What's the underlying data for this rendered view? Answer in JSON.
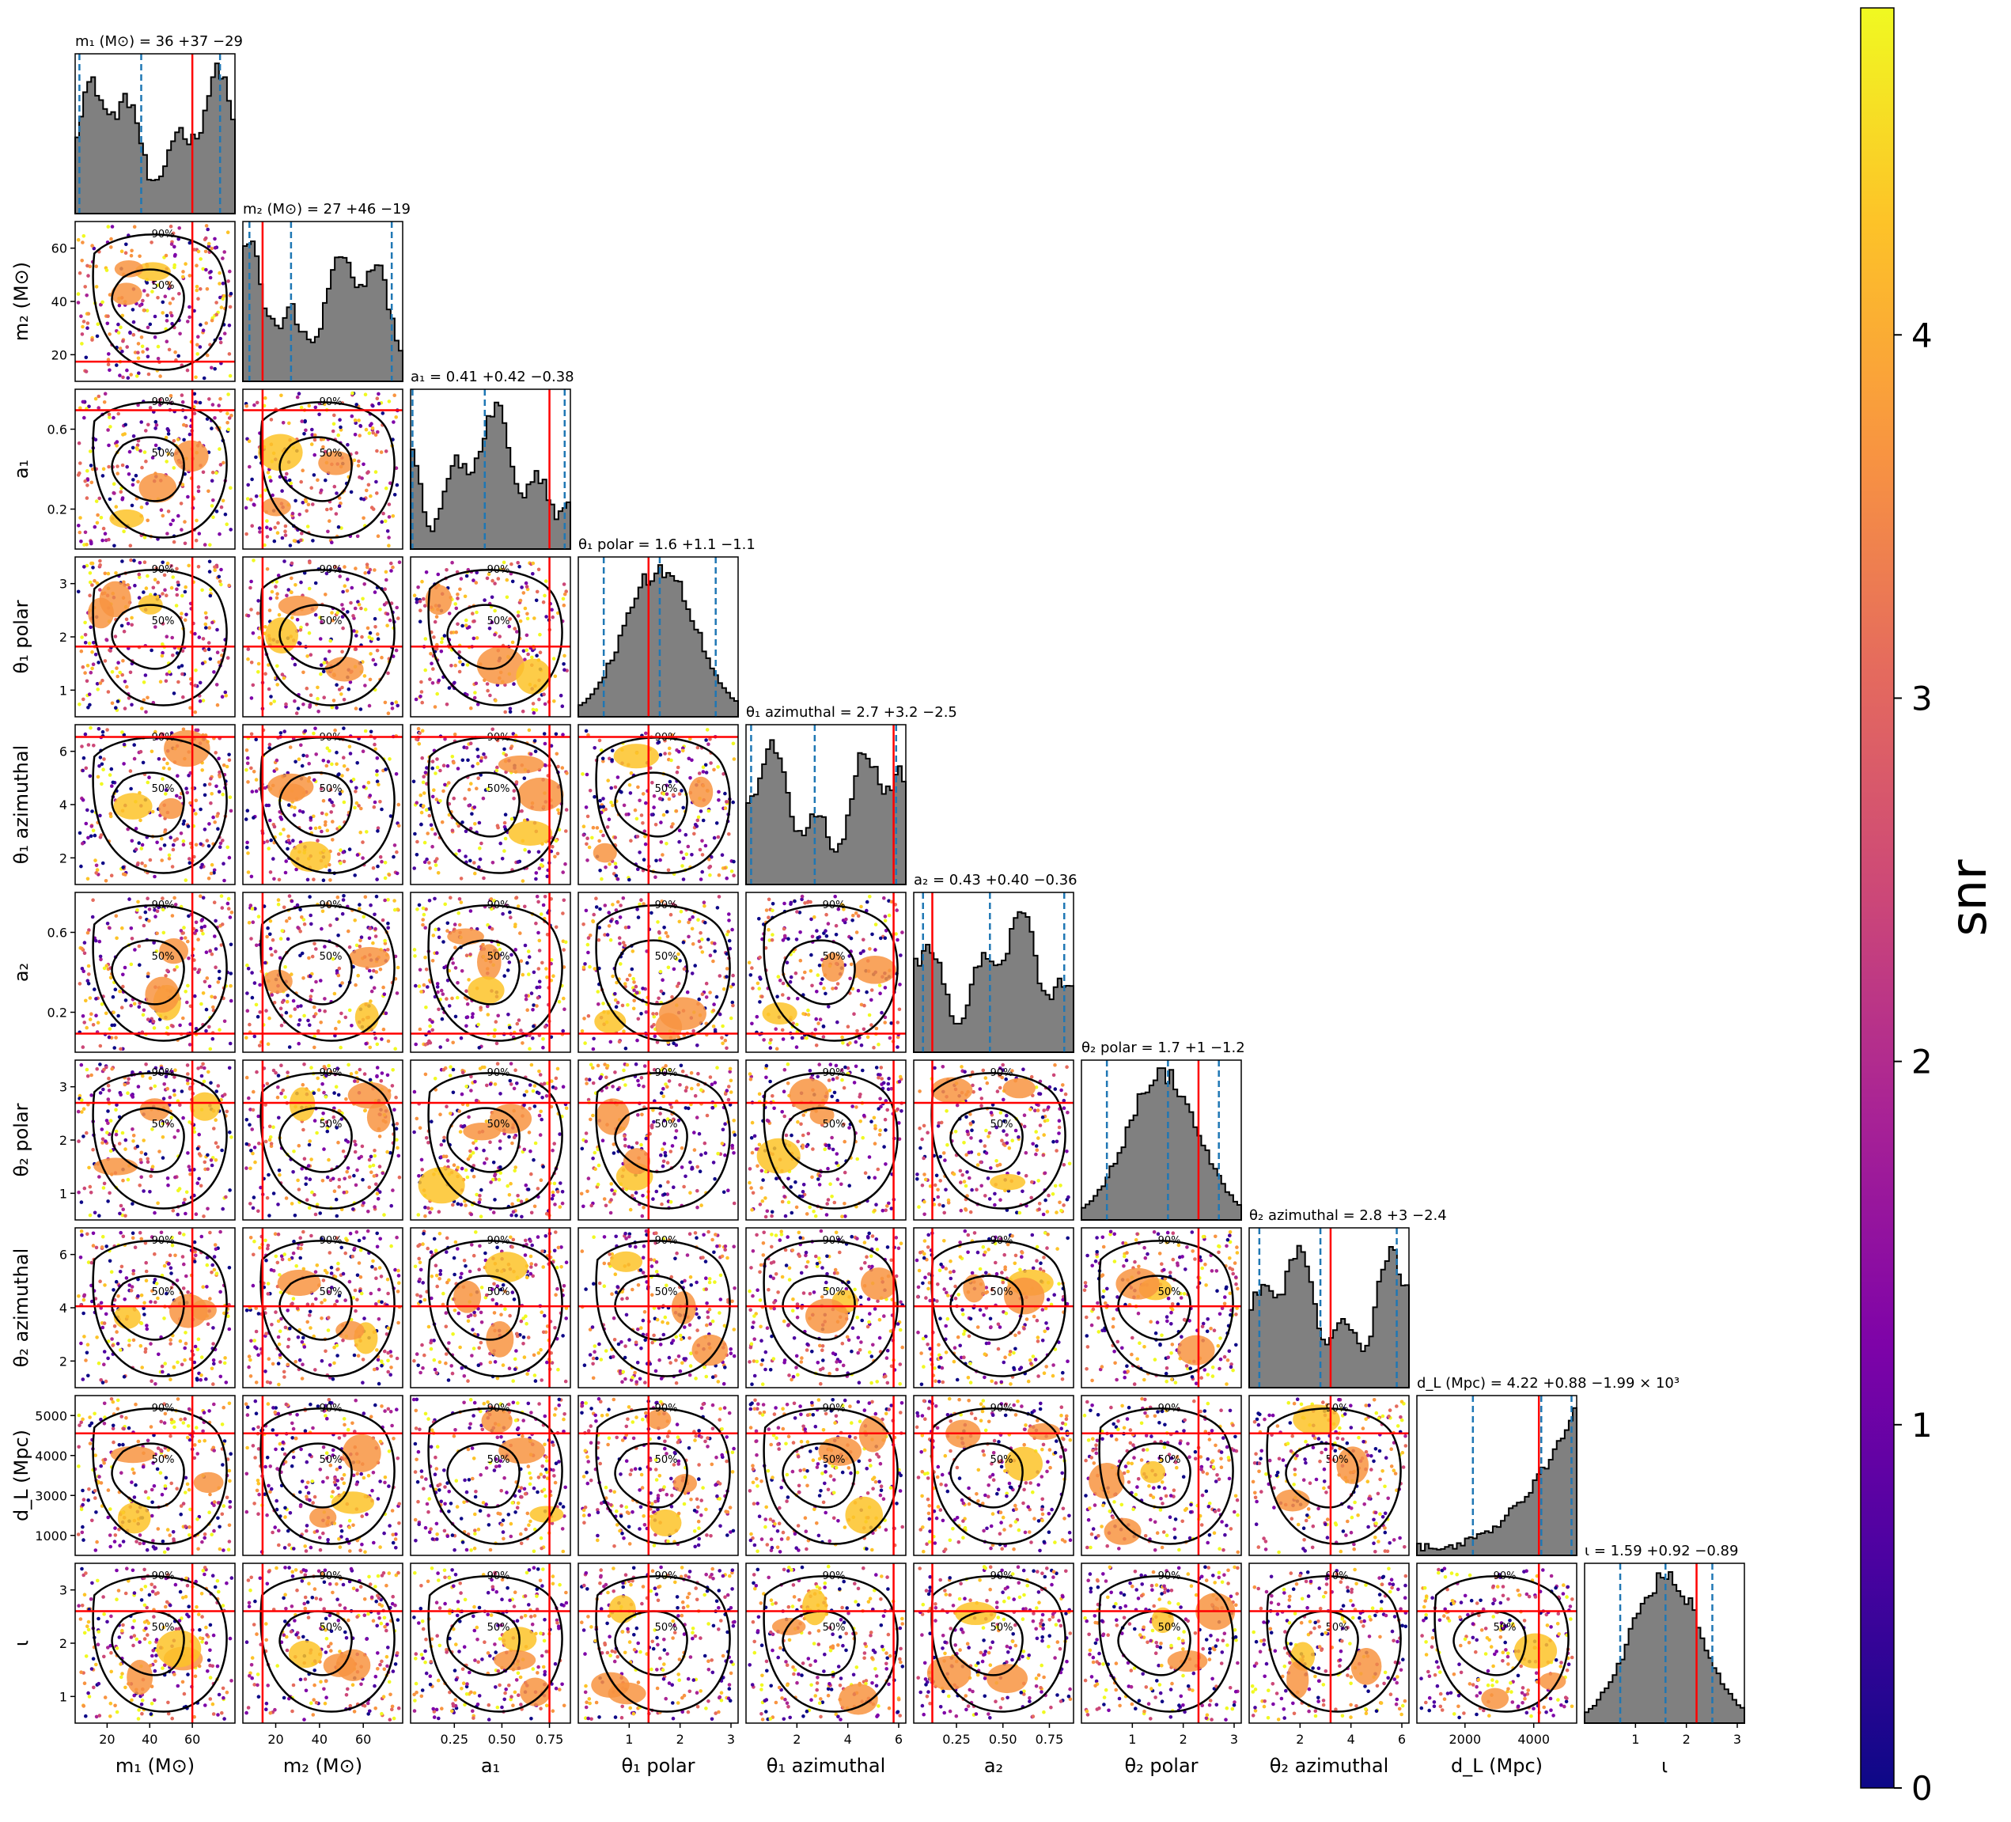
{
  "chart_data": {
    "type": "scatter",
    "parameters": [
      {
        "key": "m1",
        "label": "m₁ (M⊙)",
        "ticks": [
          "20",
          "40",
          "60"
        ],
        "tick_values": [
          20,
          40,
          60
        ],
        "range": [
          5,
          80
        ],
        "title": "m₁ (M⊙) = 36 +37 −29",
        "truth": 60,
        "quantiles": [
          7,
          36,
          73
        ]
      },
      {
        "key": "m2",
        "label": "m₂ (M⊙)",
        "ticks": [
          "20",
          "40",
          "60"
        ],
        "tick_values": [
          20,
          40,
          60
        ],
        "range": [
          5,
          78
        ],
        "title": "m₂ (M⊙) = 27 +46 −19",
        "truth": 14,
        "quantiles": [
          8,
          27,
          73
        ]
      },
      {
        "key": "a1",
        "label": "a₁",
        "ticks": [
          "0.25",
          "0.50",
          "0.75"
        ],
        "tick_values": [
          0.25,
          0.5,
          0.75
        ],
        "range": [
          0.02,
          0.86
        ],
        "title": "a₁ = 0.41 +0.42 −0.38",
        "truth": 0.75,
        "quantiles": [
          0.03,
          0.41,
          0.83
        ]
      },
      {
        "key": "theta1_polar",
        "label": "θ₁ polar",
        "ticks": [
          "1",
          "2",
          "3"
        ],
        "tick_values": [
          1,
          2,
          3
        ],
        "range": [
          0,
          3.14
        ],
        "title": "θ₁ polar = 1.6 +1.1 −1.1",
        "truth": 1.38,
        "quantiles": [
          0.5,
          1.6,
          2.7
        ]
      },
      {
        "key": "theta1_az",
        "label": "θ₁ azimuthal",
        "ticks": [
          "2",
          "4",
          "6"
        ],
        "tick_values": [
          2,
          4,
          6
        ],
        "range": [
          0,
          6.28
        ],
        "title": "θ₁ azimuthal = 2.7 +3.2 −2.5",
        "truth": 5.8,
        "quantiles": [
          0.2,
          2.7,
          5.9
        ]
      },
      {
        "key": "a2",
        "label": "a₂",
        "ticks": [
          "0.25",
          "0.50",
          "0.75"
        ],
        "tick_values": [
          0.25,
          0.5,
          0.75
        ],
        "range": [
          0.02,
          0.88
        ],
        "title": "a₂ = 0.43 +0.40 −0.36",
        "truth": 0.12,
        "quantiles": [
          0.07,
          0.43,
          0.83
        ]
      },
      {
        "key": "theta2_polar",
        "label": "θ₂ polar",
        "ticks": [
          "1",
          "2",
          "3"
        ],
        "tick_values": [
          1,
          2,
          3
        ],
        "range": [
          0,
          3.14
        ],
        "title": "θ₂ polar = 1.7 +1 −1.2",
        "truth": 2.3,
        "quantiles": [
          0.5,
          1.7,
          2.7
        ]
      },
      {
        "key": "theta2_az",
        "label": "θ₂ azimuthal",
        "ticks": [
          "2",
          "4",
          "6"
        ],
        "tick_values": [
          2,
          4,
          6
        ],
        "range": [
          0,
          6.28
        ],
        "title": "θ₂ azimuthal = 2.8 +3 −2.4",
        "truth": 3.2,
        "quantiles": [
          0.4,
          2.8,
          5.8
        ]
      },
      {
        "key": "dL",
        "label": "d_L (Mpc)",
        "ticks": [
          "2000",
          "4000"
        ],
        "tick_values": [
          2000,
          4000
        ],
        "range": [
          600,
          5250
        ],
        "title": "d_L (Mpc) = 4.22 +0.88 −1.99 × 10³",
        "truth": 4150,
        "quantiles": [
          2230,
          4220,
          5100
        ]
      },
      {
        "key": "iota",
        "label": "ι",
        "ticks": [
          "1",
          "2",
          "3"
        ],
        "tick_values": [
          1,
          2,
          3
        ],
        "range": [
          0,
          3.14
        ],
        "title": "ι = 1.59 +0.92 −0.89",
        "truth": 2.2,
        "quantiles": [
          0.7,
          1.59,
          2.51
        ]
      }
    ],
    "y_ticks": {
      "m2": [
        "20",
        "40",
        "60"
      ],
      "a1": [
        "0.2",
        "0.6"
      ],
      "theta1_polar": [
        "1",
        "2",
        "3"
      ],
      "theta1_az": [
        "2",
        "4",
        "6"
      ],
      "a2": [
        "0.2",
        "0.6"
      ],
      "theta2_polar": [
        "1",
        "2",
        "3"
      ],
      "theta2_az": [
        "2",
        "4",
        "6"
      ],
      "dL": [
        "1000",
        "3000",
        "4000",
        "5000"
      ],
      "iota": [
        "1",
        "2",
        "3"
      ]
    },
    "contour_labels": [
      "50%",
      "90%"
    ],
    "colorbar": {
      "label": "snr",
      "ticks": [
        "0",
        "1",
        "2",
        "3",
        "4"
      ],
      "min": 0,
      "max": 4.9
    },
    "colors": {
      "histogram_fill": "#808080",
      "quantile_line": "#1f77b4",
      "truth_line": "#ff0000",
      "contour": "#000000"
    }
  }
}
